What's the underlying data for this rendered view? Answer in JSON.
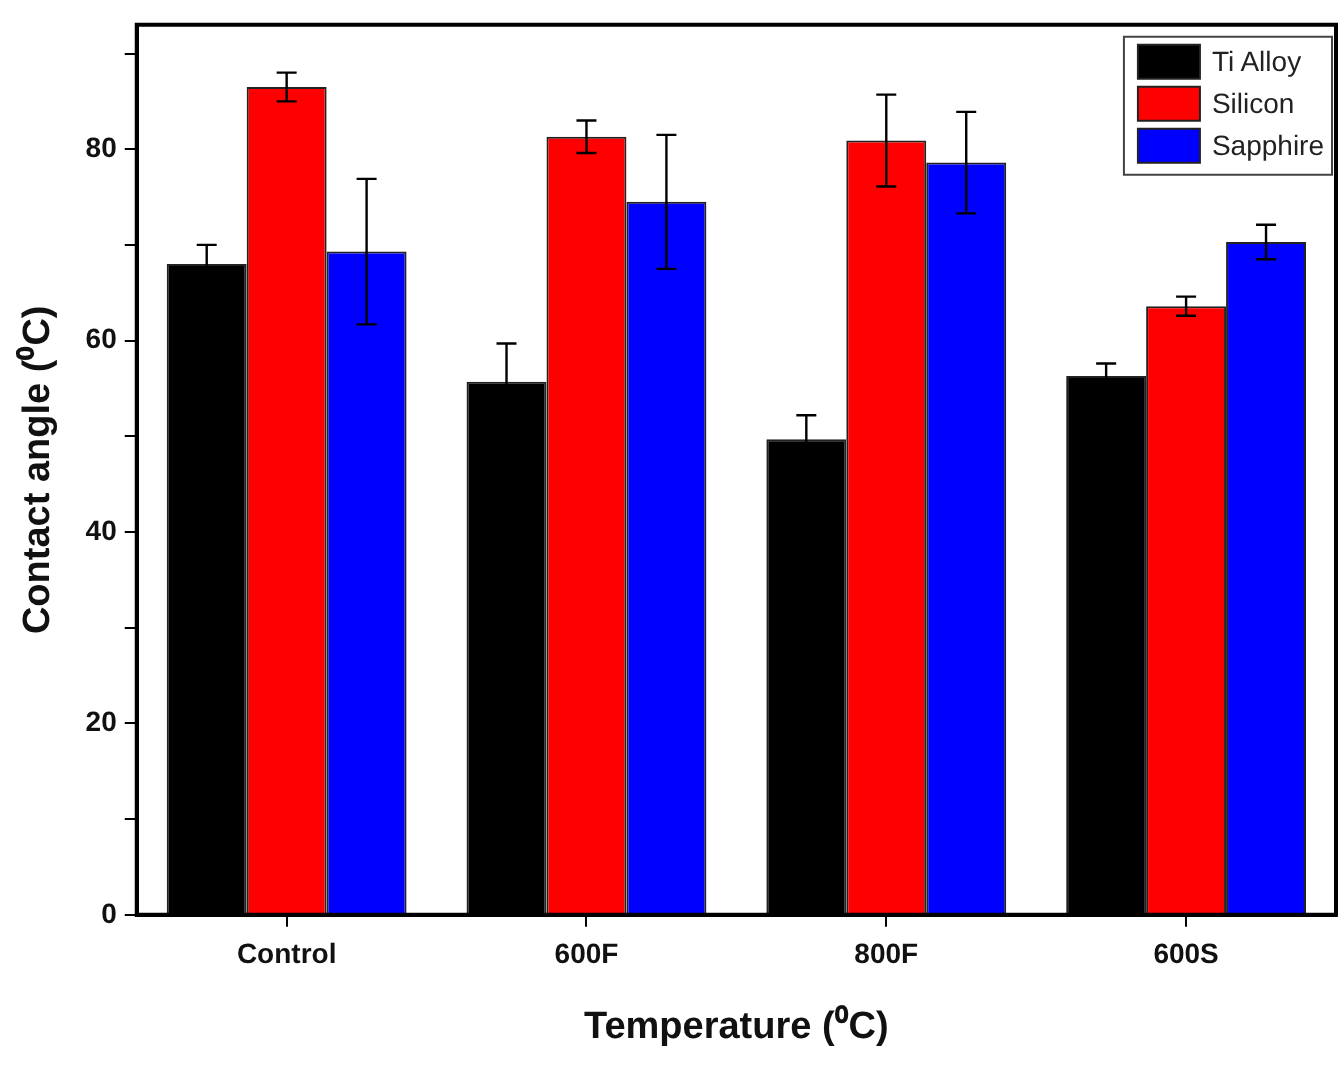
{
  "chart_data": {
    "type": "bar",
    "xlabel": "Temperature (⁰C)",
    "ylabel": "Contact angle (⁰C)",
    "categories": [
      "Control",
      "600F",
      "800F",
      "600S"
    ],
    "series": [
      {
        "name": "Ti Alloy",
        "color": "#000000",
        "values": [
          68,
          55.7,
          49.7,
          56.3
        ],
        "errors": [
          2,
          4,
          2.5,
          1.3
        ]
      },
      {
        "name": "Silicon",
        "color": "#ff0000",
        "values": [
          86.5,
          81.3,
          80.9,
          63.6
        ],
        "errors": [
          1.5,
          1.7,
          4.8,
          1
        ]
      },
      {
        "name": "Sapphire",
        "color": "#0000ff",
        "values": [
          69.3,
          74.5,
          78.6,
          70.3
        ],
        "errors": [
          7.6,
          7,
          5.3,
          1.8
        ]
      }
    ],
    "ylim": [
      0,
      93
    ],
    "yticks": [
      0,
      {
        "value": 10,
        "label": null
      },
      20,
      {
        "value": 30,
        "label": null
      },
      40,
      {
        "value": 50,
        "label": null
      },
      60,
      {
        "value": 70,
        "label": null
      },
      80,
      {
        "value": 90,
        "label": null
      }
    ],
    "grid": false,
    "legend": "top right"
  }
}
